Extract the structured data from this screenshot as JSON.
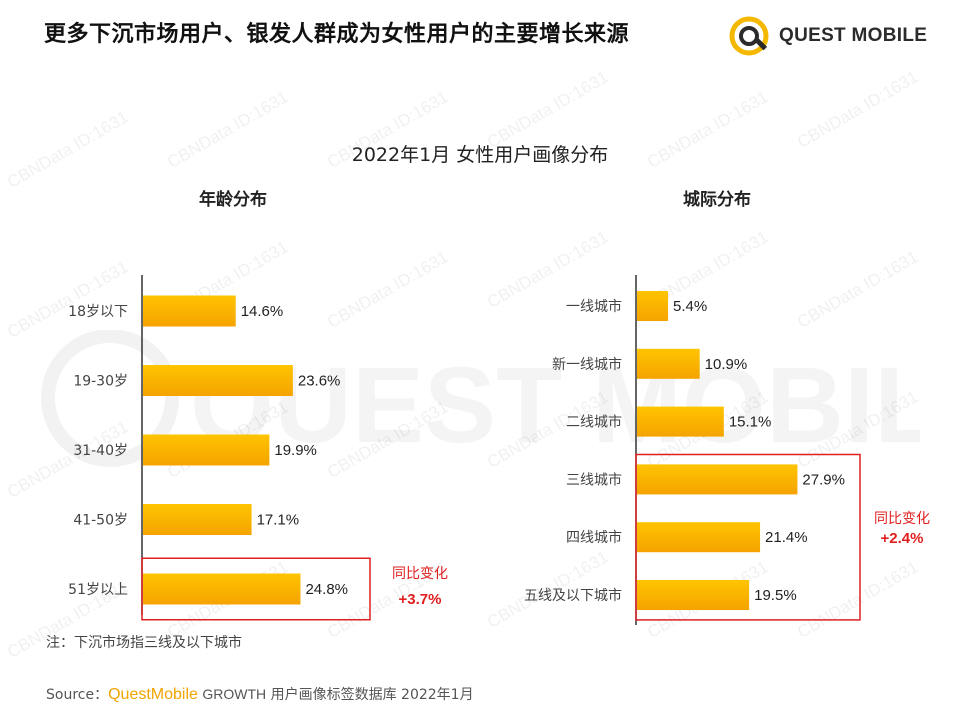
{
  "header": {
    "title": "更多下沉市场用户、银发人群成为女性用户的主要增长来源",
    "logo_text": "QUEST MOBILE"
  },
  "watermark": {
    "big_text": "QUEST MOBILE",
    "small_text": "CBNData ID:1631"
  },
  "chart_title": "2022年1月 女性用户画像分布",
  "colors": {
    "bar_top": "#FFC400",
    "bar_bottom": "#F5A300",
    "highlight_box": "#E02020",
    "axis": "#333333"
  },
  "chart_data": [
    {
      "type": "bar",
      "orientation": "horizontal",
      "title": "年龄分布",
      "categories": [
        "18岁以下",
        "19-30岁",
        "31-40岁",
        "41-50岁",
        "51岁以上"
      ],
      "values": [
        14.6,
        23.6,
        19.9,
        17.1,
        24.8
      ],
      "value_labels": [
        "14.6%",
        "23.6%",
        "19.9%",
        "17.1%",
        "24.8%"
      ],
      "unit": "%",
      "highlight": {
        "categories": [
          "51岁以上"
        ],
        "label": "同比变化",
        "change": "+3.7%"
      }
    },
    {
      "type": "bar",
      "orientation": "horizontal",
      "title": "城际分布",
      "categories": [
        "一线城市",
        "新一线城市",
        "二线城市",
        "三线城市",
        "四线城市",
        "五线及以下城市"
      ],
      "values": [
        5.4,
        10.9,
        15.1,
        27.9,
        21.4,
        19.5
      ],
      "value_labels": [
        "5.4%",
        "10.9%",
        "15.1%",
        "27.9%",
        "21.4%",
        "19.5%"
      ],
      "unit": "%",
      "highlight": {
        "categories": [
          "三线城市",
          "四线城市",
          "五线及以下城市"
        ],
        "label": "同比变化",
        "change": "+2.4%"
      }
    }
  ],
  "note": "注：下沉市场指三线及以下城市",
  "source": {
    "prefix": "Source：",
    "brand": "QuestMobile",
    "db": "GROWTH",
    "rest": " 用户画像标签数据库 2022年1月"
  }
}
